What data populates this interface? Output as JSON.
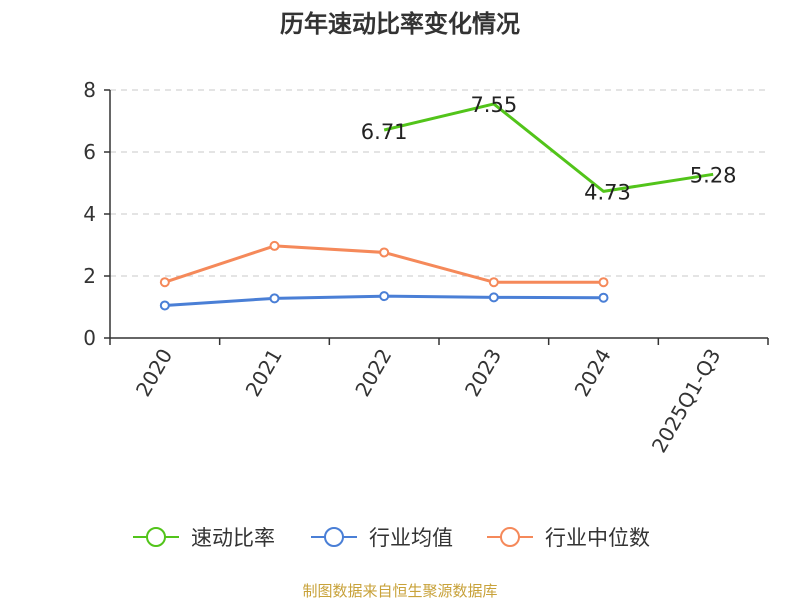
{
  "chart_data": {
    "type": "line",
    "title": "历年速动比率变化情况",
    "categories": [
      "2020",
      "2021",
      "2022",
      "2023",
      "2024",
      "2025Q1-Q3"
    ],
    "ylim": [
      0,
      8
    ],
    "yticks": [
      0,
      2,
      4,
      6,
      8
    ],
    "grid": true,
    "legend_position": "bottom",
    "series": [
      {
        "name": "速动比率",
        "color": "#52c41a",
        "values": [
          null,
          null,
          6.71,
          7.55,
          4.73,
          5.28
        ],
        "labels": [
          "",
          "",
          "6.71",
          "7.55",
          "4.73",
          "5.28"
        ]
      },
      {
        "name": "行业均值",
        "color": "#4a7fd6",
        "values": [
          1.05,
          1.28,
          1.35,
          1.31,
          1.3,
          null
        ]
      },
      {
        "name": "行业中位数",
        "color": "#f5895a",
        "values": [
          1.8,
          2.97,
          2.76,
          1.8,
          1.8,
          null
        ]
      }
    ],
    "source": "制图数据来自恒生聚源数据库"
  }
}
